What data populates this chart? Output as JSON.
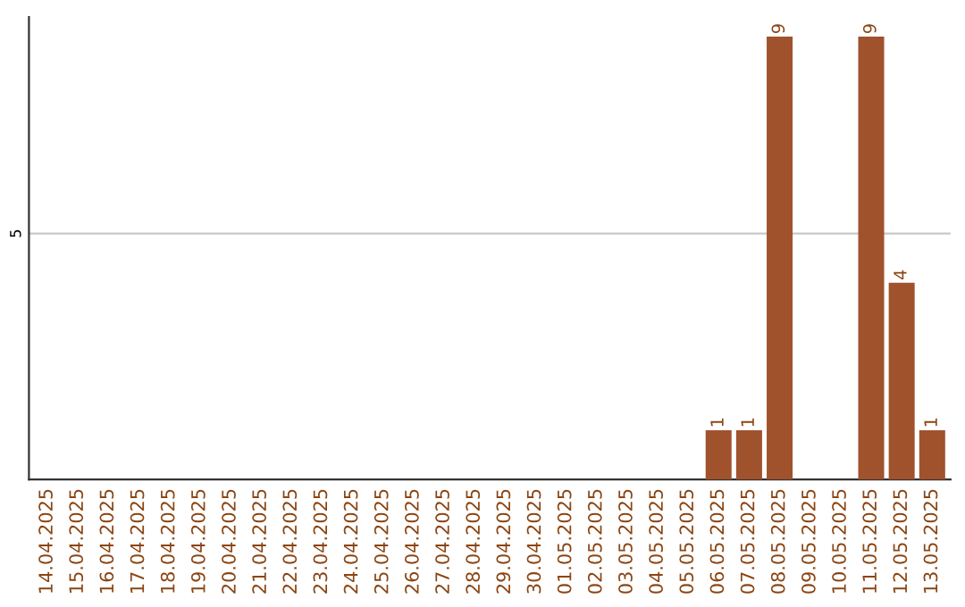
{
  "chart_data": {
    "type": "bar",
    "categories": [
      "14.04.2025",
      "15.04.2025",
      "16.04.2025",
      "17.04.2025",
      "18.04.2025",
      "19.04.2025",
      "20.04.2025",
      "21.04.2025",
      "22.04.2025",
      "23.04.2025",
      "24.04.2025",
      "25.04.2025",
      "26.04.2025",
      "27.04.2025",
      "28.04.2025",
      "29.04.2025",
      "30.04.2025",
      "01.05.2025",
      "02.05.2025",
      "03.05.2025",
      "04.05.2025",
      "05.05.2025",
      "06.05.2025",
      "07.05.2025",
      "08.05.2025",
      "09.05.2025",
      "10.05.2025",
      "11.05.2025",
      "12.05.2025",
      "13.05.2025"
    ],
    "values": [
      null,
      null,
      null,
      null,
      null,
      null,
      null,
      null,
      null,
      null,
      null,
      null,
      null,
      null,
      null,
      null,
      null,
      null,
      null,
      null,
      null,
      null,
      1,
      1,
      9,
      null,
      null,
      9,
      4,
      1
    ],
    "data_labels": true,
    "color": "#a0522d",
    "ylim": [
      0,
      9.4
    ],
    "yticks": [
      5
    ],
    "grid": "y"
  }
}
